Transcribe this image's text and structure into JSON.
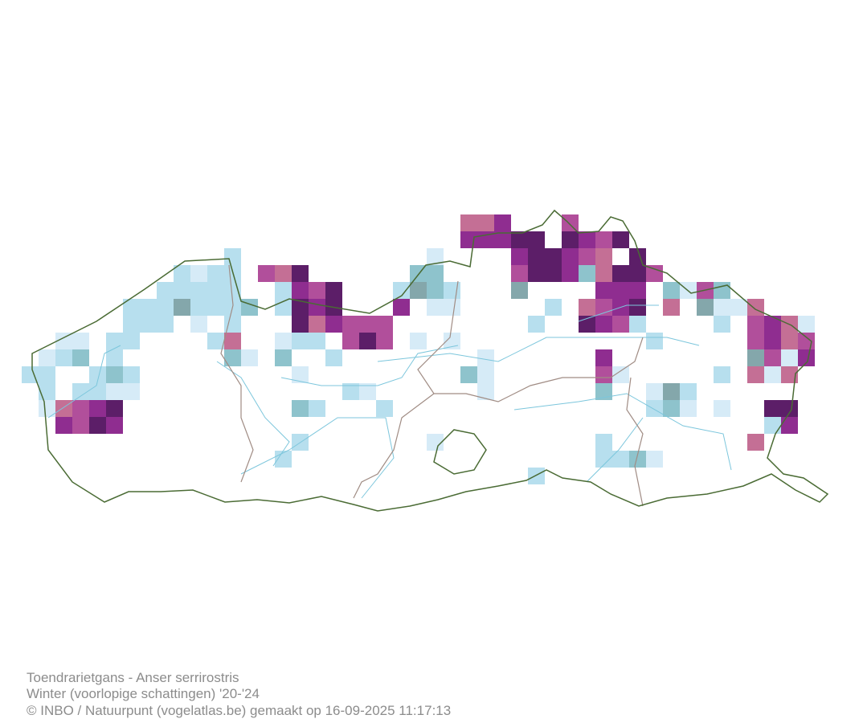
{
  "caption": {
    "lines": [
      "Toendrarietgans - Anser serrirostris",
      "Winter (voorlopige schattingen) '20-'24",
      "© INBO / Natuurpunt (vogelatlas.be) gemaakt op 16-09-2025 11:17:13"
    ]
  }
}
